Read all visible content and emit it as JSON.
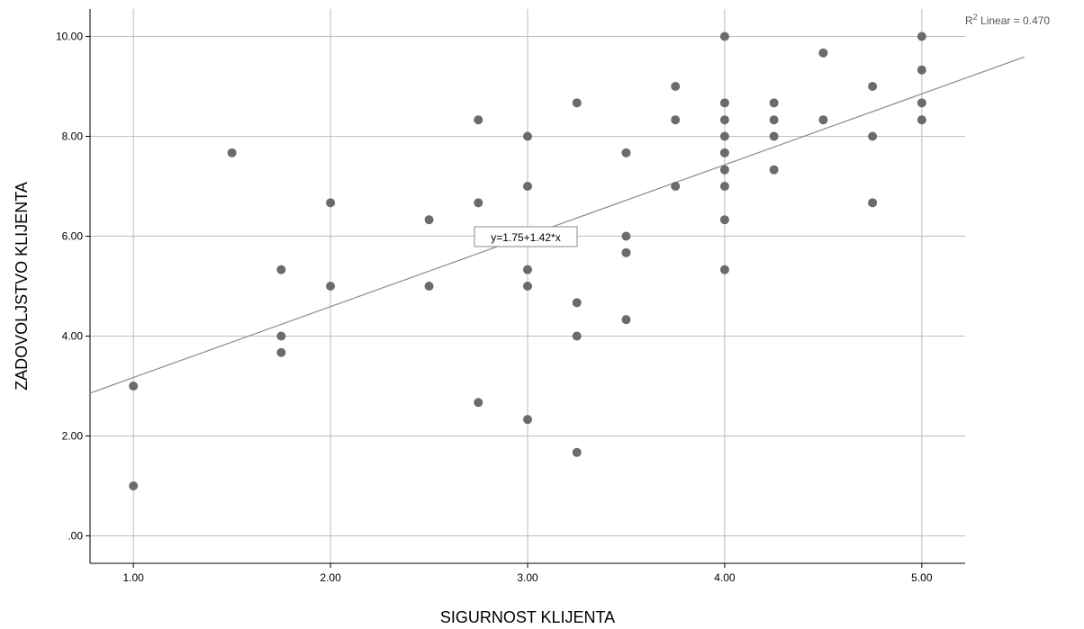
{
  "chart_data": {
    "type": "scatter",
    "xlabel": "SIGURNOST KLIJENTA",
    "ylabel": "ZADOVOLJSTVO KLIJENTA",
    "xlim": [
      0.78,
      5.22
    ],
    "ylim": [
      -0.55,
      10.55
    ],
    "x_ticks": [
      1.0,
      2.0,
      3.0,
      4.0,
      5.0
    ],
    "x_tick_labels": [
      "1.00",
      "2.00",
      "3.00",
      "4.00",
      "5.00"
    ],
    "y_ticks": [
      0,
      2,
      4,
      6,
      8,
      10
    ],
    "y_tick_labels": [
      ".00",
      "2.00",
      "4.00",
      "6.00",
      "8.00",
      "10.00"
    ],
    "grid": true,
    "marker_color": "#6b6b6b",
    "line_color": "#8a8a8a",
    "grid_color": "#bdbdbd",
    "fit_line": {
      "intercept": 1.75,
      "slope": 1.42,
      "label": "y=1.75+1.42*x"
    },
    "r2_label": {
      "prefix": "R",
      "sup": "2",
      "text": " Linear = 0.470"
    },
    "points": [
      {
        "x": 1.0,
        "y": 3.0
      },
      {
        "x": 1.0,
        "y": 1.0
      },
      {
        "x": 1.5,
        "y": 7.67
      },
      {
        "x": 1.75,
        "y": 5.33
      },
      {
        "x": 1.75,
        "y": 4.0
      },
      {
        "x": 1.75,
        "y": 3.67
      },
      {
        "x": 2.0,
        "y": 6.67
      },
      {
        "x": 2.0,
        "y": 5.0
      },
      {
        "x": 2.5,
        "y": 6.33
      },
      {
        "x": 2.5,
        "y": 5.0
      },
      {
        "x": 2.75,
        "y": 8.33
      },
      {
        "x": 2.75,
        "y": 6.67
      },
      {
        "x": 2.75,
        "y": 2.67
      },
      {
        "x": 3.0,
        "y": 8.0
      },
      {
        "x": 3.0,
        "y": 7.0
      },
      {
        "x": 3.0,
        "y": 5.33
      },
      {
        "x": 3.0,
        "y": 5.0
      },
      {
        "x": 3.0,
        "y": 2.33
      },
      {
        "x": 3.25,
        "y": 8.67
      },
      {
        "x": 3.25,
        "y": 4.67
      },
      {
        "x": 3.25,
        "y": 4.0
      },
      {
        "x": 3.25,
        "y": 1.67
      },
      {
        "x": 3.5,
        "y": 7.67
      },
      {
        "x": 3.5,
        "y": 6.0
      },
      {
        "x": 3.5,
        "y": 5.67
      },
      {
        "x": 3.5,
        "y": 4.33
      },
      {
        "x": 3.75,
        "y": 9.0
      },
      {
        "x": 3.75,
        "y": 8.33
      },
      {
        "x": 3.75,
        "y": 7.0
      },
      {
        "x": 4.0,
        "y": 10.0
      },
      {
        "x": 4.0,
        "y": 8.67
      },
      {
        "x": 4.0,
        "y": 8.33
      },
      {
        "x": 4.0,
        "y": 8.0
      },
      {
        "x": 4.0,
        "y": 7.67
      },
      {
        "x": 4.0,
        "y": 7.33
      },
      {
        "x": 4.0,
        "y": 7.0
      },
      {
        "x": 4.0,
        "y": 6.33
      },
      {
        "x": 4.0,
        "y": 5.33
      },
      {
        "x": 4.25,
        "y": 8.67
      },
      {
        "x": 4.25,
        "y": 8.33
      },
      {
        "x": 4.25,
        "y": 8.0
      },
      {
        "x": 4.25,
        "y": 7.33
      },
      {
        "x": 4.5,
        "y": 9.67
      },
      {
        "x": 4.5,
        "y": 8.33
      },
      {
        "x": 4.75,
        "y": 9.0
      },
      {
        "x": 4.75,
        "y": 8.0
      },
      {
        "x": 4.75,
        "y": 6.67
      },
      {
        "x": 5.0,
        "y": 10.0
      },
      {
        "x": 5.0,
        "y": 9.33
      },
      {
        "x": 5.0,
        "y": 8.67
      },
      {
        "x": 5.0,
        "y": 8.33
      }
    ]
  }
}
